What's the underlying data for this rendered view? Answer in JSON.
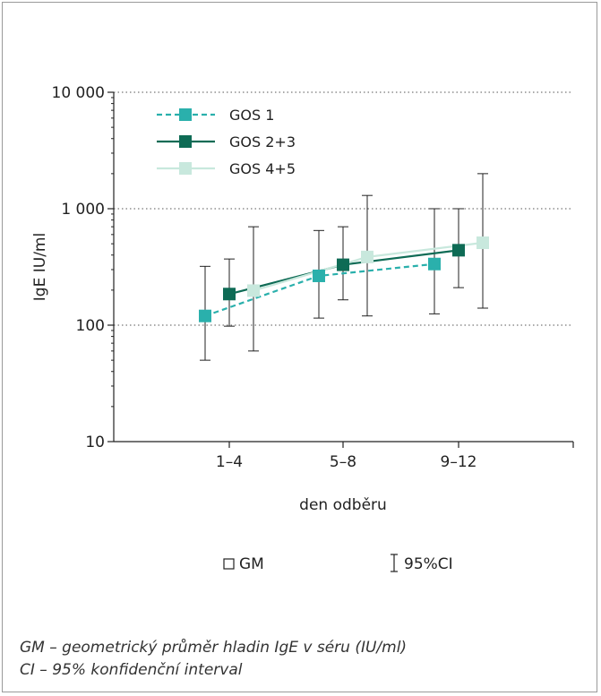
{
  "chart_data": {
    "type": "line",
    "ylabel": "IgE IU/ml",
    "xlabel": "den odběru",
    "y_scale": "log",
    "ylim": [
      10,
      10000
    ],
    "y_ticks": [
      {
        "value": 10000,
        "label": "10 000"
      },
      {
        "value": 1000,
        "label": "1 000"
      },
      {
        "value": 100,
        "label": "100"
      },
      {
        "value": 10,
        "label": "10"
      }
    ],
    "gridlines": [
      10000,
      1000,
      100
    ],
    "grid_style": "dotted horizontal",
    "categories": [
      "1–4",
      "5–8",
      "9–12"
    ],
    "legend_position": "top-left",
    "series": [
      {
        "name": "GOS 1",
        "color": "#2ab0ac",
        "line_style": "dashed",
        "offset": -1,
        "values": [
          120,
          265,
          335
        ],
        "ci_low": [
          50,
          115,
          125
        ],
        "ci_high": [
          320,
          650,
          1000
        ]
      },
      {
        "name": "GOS 2+3",
        "color": "#0e6b55",
        "line_style": "solid",
        "offset": 0,
        "values": [
          185,
          330,
          440
        ],
        "ci_low": [
          98,
          165,
          210
        ],
        "ci_high": [
          370,
          700,
          1000
        ]
      },
      {
        "name": "GOS 4+5",
        "color": "#c8e8dd",
        "line_style": "solid",
        "offset": 1,
        "values": [
          198,
          385,
          510
        ],
        "ci_low": [
          60,
          120,
          140
        ],
        "ci_high": [
          700,
          1300,
          2000
        ]
      }
    ]
  },
  "key": {
    "gm_label": "GM",
    "ci_label": "95%CI"
  },
  "footnotes": {
    "line1": "GM – geometrický průměr hladin IgE v séru (IU/ml)",
    "line2": "CI – 95% konfidenční interval"
  }
}
